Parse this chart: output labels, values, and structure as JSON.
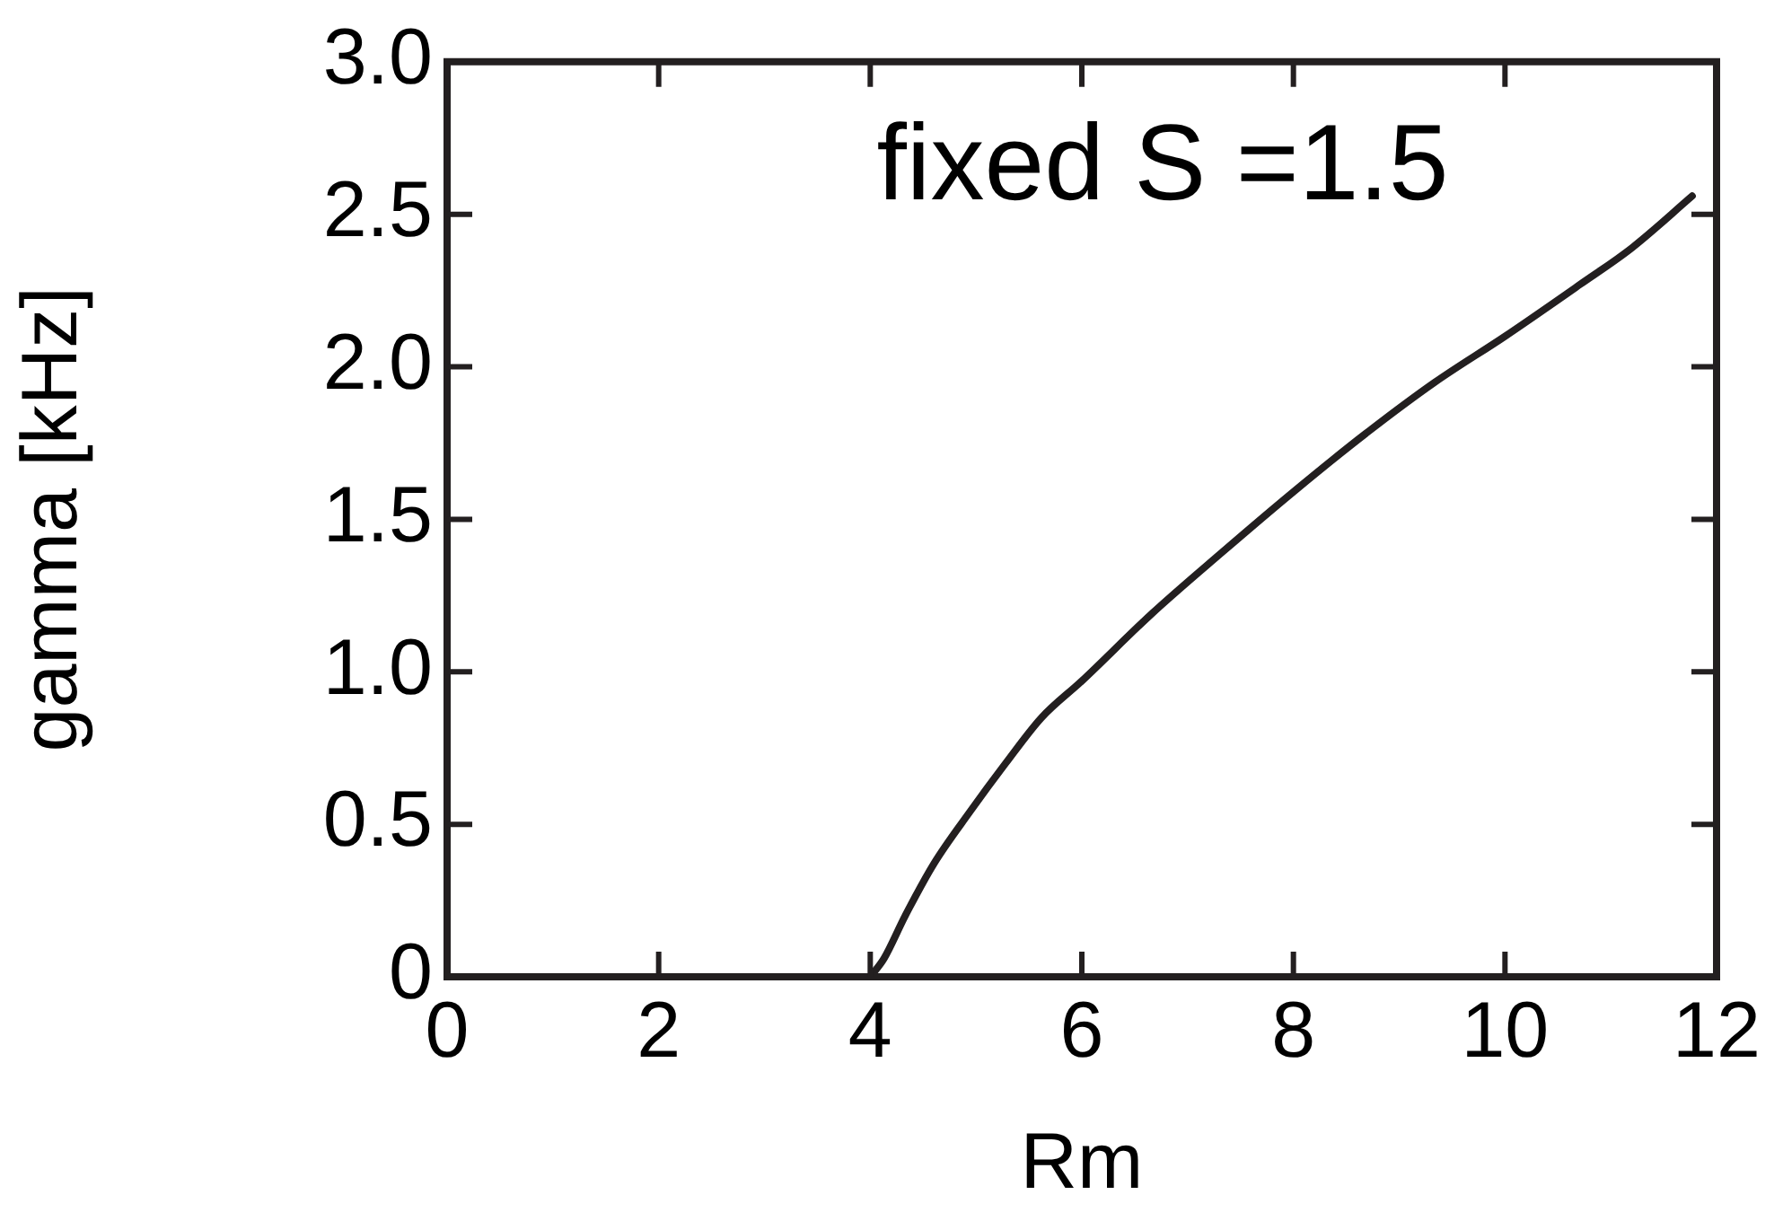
{
  "chart_data": {
    "type": "line",
    "xlabel": "Rm",
    "ylabel": "gamma [kHz]",
    "annotations": [
      "fixed S =1.5"
    ],
    "x": [
      4,
      4.13,
      4.33,
      4.6,
      4.94,
      5.28,
      5.62,
      6,
      6.66,
      7.32,
      8,
      8.68,
      9.34,
      10,
      10.71,
      11.2,
      11.77
    ],
    "series": [
      {
        "color": "#231f20",
        "values": [
          0,
          0.06,
          0.2,
          0.37,
          0.54,
          0.7,
          0.85,
          0.97,
          1.19,
          1.39,
          1.59,
          1.78,
          1.95,
          2.1,
          2.27,
          2.39,
          2.56
        ]
      }
    ],
    "xlim": [
      0,
      12
    ],
    "xticks": [
      0,
      2,
      4,
      6,
      8,
      10,
      12
    ],
    "ylim": [
      0,
      3
    ],
    "yticks": [
      {
        "value": 0,
        "label": "0"
      },
      0.5,
      {
        "value": 1,
        "label": "1.0"
      },
      1.5,
      {
        "value": 2,
        "label": "2.0"
      },
      2.5,
      {
        "value": 3,
        "label": "3.0"
      }
    ],
    "grid": false,
    "legend": false,
    "marker": "none",
    "line_style": "solid"
  }
}
